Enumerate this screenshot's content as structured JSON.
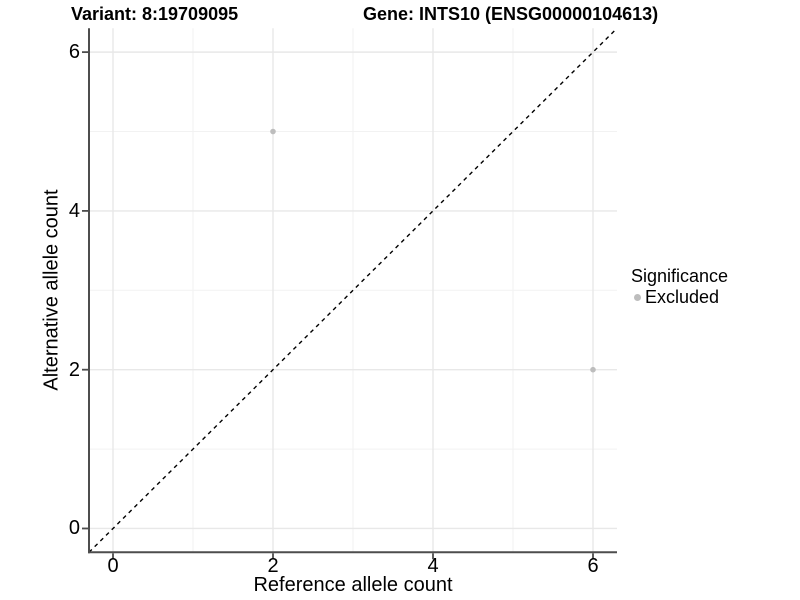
{
  "titles": {
    "variant": "Variant: 8:19709095",
    "gene": "Gene: INTS10 (ENSG00000104613)"
  },
  "axes": {
    "x_label": "Reference allele count",
    "y_label": "Alternative allele count"
  },
  "legend": {
    "title": "Significance",
    "items": [
      {
        "label": "Excluded",
        "color": "#bdbdbd"
      }
    ],
    "position": "right"
  },
  "colors": {
    "background": "#ffffff",
    "axis_line": "#4d4d4d",
    "grid_major": "#e8e8e8",
    "grid_minor": "#f2f2f2",
    "reference_line": "#000000",
    "text": "#000000"
  },
  "chart_data": {
    "type": "scatter",
    "title": "Variant: 8:19709095 / Gene: INTS10 (ENSG00000104613)",
    "xlabel": "Reference allele count",
    "ylabel": "Alternative allele count",
    "xlim": [
      -0.3,
      6.3
    ],
    "ylim": [
      -0.3,
      6.3
    ],
    "x_ticks": [
      0,
      2,
      4,
      6
    ],
    "y_ticks": [
      0,
      2,
      4,
      6
    ],
    "x_minor_ticks": [
      1,
      3,
      5
    ],
    "y_minor_ticks": [
      1,
      3,
      5
    ],
    "grid": true,
    "legend_position": "right",
    "series": [
      {
        "name": "Excluded",
        "color": "#bdbdbd",
        "points": [
          {
            "x": 2,
            "y": 5
          },
          {
            "x": 6,
            "y": 2
          }
        ]
      }
    ],
    "reference_line": {
      "kind": "identity",
      "equation": "y = x",
      "style": "dashed",
      "color": "#000000"
    }
  }
}
